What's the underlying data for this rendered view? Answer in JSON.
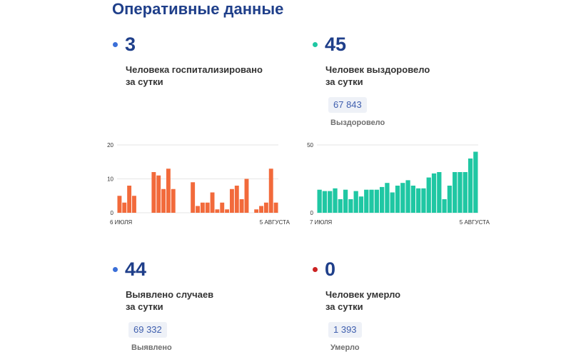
{
  "page_title": "Оперативные данные",
  "stats": {
    "hospitalized": {
      "value": "3",
      "label_line1": "Человека госпитализировано",
      "label_line2": "за сутки",
      "color": "#3b6fd8"
    },
    "recovered": {
      "value": "45",
      "label_line1": "Человек выздоровело",
      "label_line2": "за сутки",
      "total": "67 843",
      "total_label": "Выздоровело",
      "color": "#1fc7a3"
    },
    "detected": {
      "value": "44",
      "label_line1": "Выявлено случаев",
      "label_line2": "за сутки",
      "total": "69 332",
      "total_label": "Выявлено",
      "color": "#3b6fd8"
    },
    "deaths": {
      "value": "0",
      "label_line1": "Человек умерло",
      "label_line2": "за сутки",
      "total": "1 393",
      "total_label": "Умерло",
      "color": "#cc2222"
    }
  },
  "chart_data": [
    {
      "type": "bar",
      "title": "",
      "color": "#f26a3b",
      "x_start_label": "6 ИЮЛЯ",
      "x_end_label": "5 АВГУСТА",
      "ylim": [
        0,
        20
      ],
      "yticks": [
        0,
        10,
        20
      ],
      "grid": true,
      "values": [
        5,
        3,
        8,
        5,
        0,
        0,
        0,
        12,
        11,
        7,
        13,
        7,
        0,
        0,
        0,
        9,
        2,
        3,
        3,
        6,
        1,
        3,
        1,
        7,
        8,
        4,
        10,
        0,
        1,
        2,
        3,
        13,
        3
      ]
    },
    {
      "type": "bar",
      "title": "",
      "color": "#1fc7a3",
      "x_start_label": "7 ИЮЛЯ",
      "x_end_label": "5 АВГУСТА",
      "ylim": [
        0,
        50
      ],
      "yticks": [
        0,
        50
      ],
      "grid": true,
      "values": [
        17,
        16,
        16,
        18,
        10,
        17,
        10,
        16,
        12,
        17,
        17,
        17,
        19,
        22,
        15,
        20,
        22,
        24,
        20,
        18,
        18,
        26,
        29,
        30,
        10,
        20,
        30,
        30,
        30,
        40,
        45
      ]
    }
  ]
}
